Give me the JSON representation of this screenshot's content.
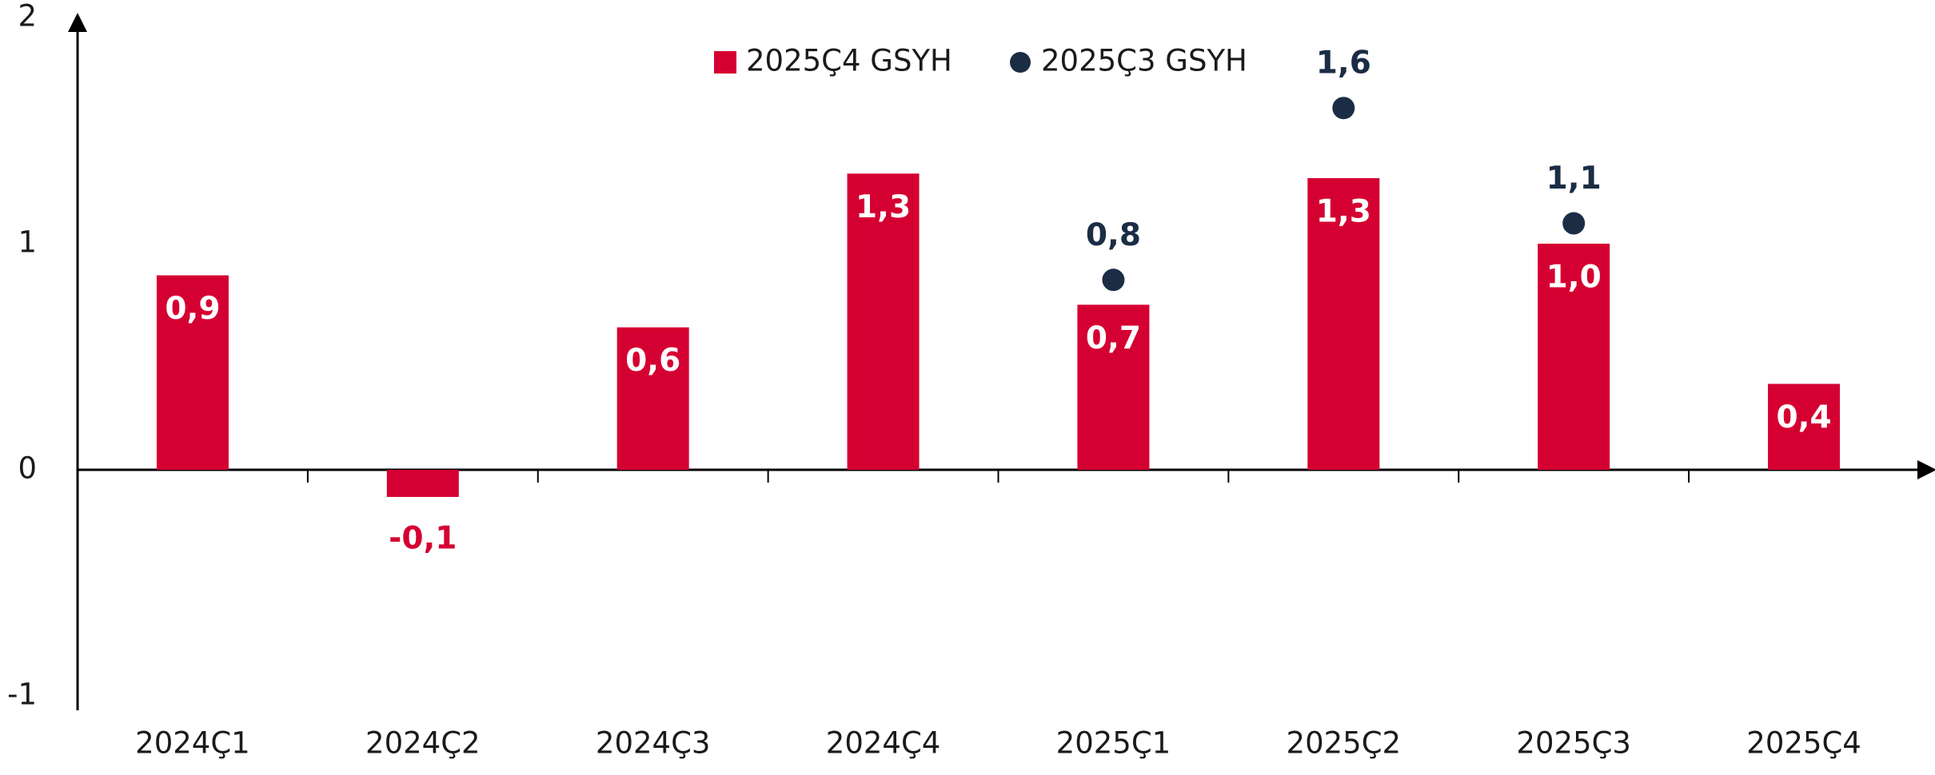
{
  "chart_data": {
    "type": "bar",
    "categories": [
      "2024Ç1",
      "2024Ç2",
      "2024Ç3",
      "2024Ç4",
      "2025Ç1",
      "2025Ç2",
      "2025Ç3",
      "2025Ç4"
    ],
    "series": [
      {
        "name": "2025Ç4 GSYH",
        "color": "#d50032",
        "marker": "bar",
        "values": [
          0.86,
          -0.12,
          0.63,
          1.31,
          0.73,
          1.29,
          1.0,
          0.38
        ],
        "value_labels": [
          "0,9",
          "-0,1",
          "0,6",
          "1,3",
          "0,7",
          "1,3",
          "1,0",
          "0,4"
        ]
      },
      {
        "name": "2025Ç3 GSYH",
        "color": "#1b2d45",
        "marker": "circle",
        "values": [
          null,
          null,
          null,
          null,
          0.84,
          1.6,
          1.09,
          null
        ],
        "value_labels": [
          null,
          null,
          null,
          null,
          "0,8",
          "1,6",
          "1,1",
          null
        ]
      }
    ],
    "ylim": [
      -1,
      2
    ],
    "yticks": [
      -1,
      0,
      1,
      2
    ],
    "grid": false,
    "legend": "top"
  }
}
